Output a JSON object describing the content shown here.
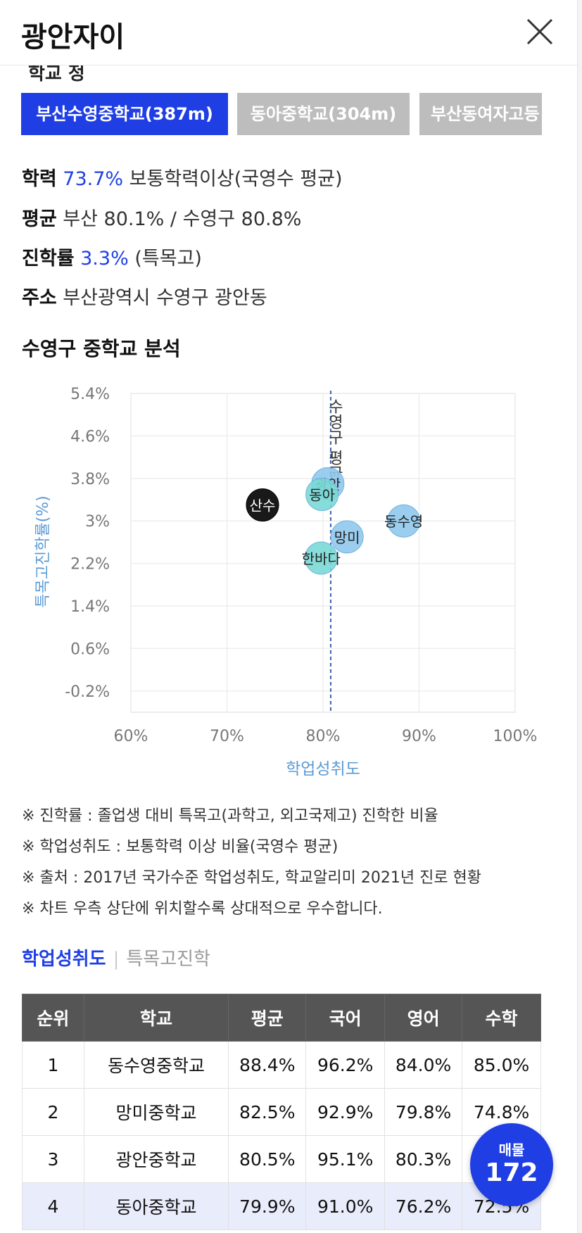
{
  "header": {
    "title": "광안자이"
  },
  "section_cut_heading": "학교 정",
  "school_tabs": [
    {
      "label": "부산수영중학교(387m)",
      "active": true
    },
    {
      "label": "동아중학교(304m)",
      "active": false
    },
    {
      "label": "부산동여자고등",
      "active": false
    }
  ],
  "info": {
    "scholarship_label": "학력",
    "scholarship_value": "73.7%",
    "scholarship_desc": "보통학력이상(국영수 평균)",
    "average_label": "평균",
    "average_value": "부산 80.1% / 수영구 80.8%",
    "advance_label": "진학률",
    "advance_value": "3.3%",
    "advance_desc": "(특목고)",
    "address_label": "주소",
    "address_value": "부산광역시 수영구 광안동"
  },
  "analysis_title": "수영구 중학교 분석",
  "chart_data": {
    "type": "scatter",
    "xlabel": "학업성취도",
    "ylabel": "특목고진학률(%)",
    "xlim": [
      60,
      100
    ],
    "ylim": [
      -0.6,
      5.4
    ],
    "x_ticks": [
      "60%",
      "70%",
      "80%",
      "90%",
      "100%"
    ],
    "x_tick_values": [
      60,
      70,
      80,
      90,
      100
    ],
    "y_ticks": [
      "5.4%",
      "4.6%",
      "3.8%",
      "3%",
      "2.2%",
      "1.4%",
      "0.6%",
      "-0.2%"
    ],
    "y_tick_values": [
      5.4,
      4.6,
      3.8,
      3.0,
      2.2,
      1.4,
      0.6,
      -0.2
    ],
    "reference_line": {
      "x": 80.8,
      "label": "수영구 평균"
    },
    "points": [
      {
        "label": "산수",
        "x": 73.7,
        "y": 3.3,
        "color": "#000000",
        "text_color": "#ffffff"
      },
      {
        "label": "광안",
        "x": 80.5,
        "y": 3.7,
        "color": "#8fc8ec",
        "text_color": "#222222"
      },
      {
        "label": "동아",
        "x": 79.9,
        "y": 3.5,
        "color": "#7ad9d5",
        "text_color": "#222222"
      },
      {
        "label": "동수영",
        "x": 88.4,
        "y": 3.0,
        "color": "#8fc8ec",
        "text_color": "#222222"
      },
      {
        "label": "망미",
        "x": 82.5,
        "y": 2.7,
        "color": "#8fc8ec",
        "text_color": "#222222"
      },
      {
        "label": "한바다",
        "x": 79.8,
        "y": 2.3,
        "color": "#7ad9d5",
        "text_color": "#222222"
      }
    ]
  },
  "notes": [
    "※ 진학률 : 졸업생 대비 특목고(과학고, 외고국제고) 진학한 비율",
    "※ 학업성취도 : 보통학력 이상 비율(국영수 평균)",
    "※ 출처 : 2017년 국가수준 학업성취도, 학교알리미 2021년 진로 현황",
    "※ 차트 우측 상단에 위치할수록 상대적으로 우수합니다."
  ],
  "subtabs": {
    "achievement": "학업성취도",
    "separator": "|",
    "special": "특목고진학"
  },
  "table": {
    "headers": [
      "순위",
      "학교",
      "평균",
      "국어",
      "영어",
      "수학"
    ],
    "rows": [
      [
        "1",
        "동수영중학교",
        "88.4%",
        "96.2%",
        "84.0%",
        "85.0%"
      ],
      [
        "2",
        "망미중학교",
        "82.5%",
        "92.9%",
        "79.8%",
        "74.8%"
      ],
      [
        "3",
        "광안중학교",
        "80.5%",
        "95.1%",
        "80.3%",
        ""
      ],
      [
        "4",
        "동아중학교",
        "79.9%",
        "91.0%",
        "76.2%",
        "72.5%"
      ]
    ]
  },
  "fab": {
    "label": "매물",
    "count": "172"
  },
  "colors": {
    "accent": "#1f3fe4",
    "reference": "#3f5fa8",
    "axis_label": "#5b9bd5"
  }
}
